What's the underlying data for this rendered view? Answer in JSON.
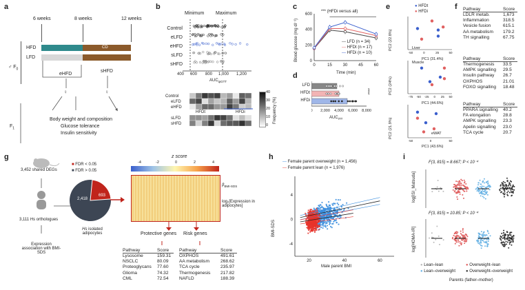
{
  "panel_labels": [
    "a",
    "b",
    "c",
    "d",
    "e",
    "f",
    "g",
    "h",
    "i"
  ],
  "panel_a": {
    "weeks": [
      "6 weeks",
      "8 weeks",
      "12 weeks"
    ],
    "rows": [
      "HFD",
      "LFD"
    ],
    "cd_label": "CD",
    "group_left": "eHFD",
    "group_right": "sHFD",
    "f0": "F",
    "f0_sub": "0",
    "f1": "F",
    "f1_sub": "1",
    "outcomes": [
      "Body weight and composition",
      "Glucose tolerance",
      "Insulin sensitivity"
    ]
  },
  "panel_b": {
    "minimum": "Minimum",
    "maximum": "Maximum",
    "groups": [
      "Control",
      "eLFD",
      "eHFD",
      "sLFD",
      "sHFD"
    ],
    "ticks": [
      "400",
      "600",
      "800",
      "1,000",
      "1,200"
    ],
    "xlabel": "AUC",
    "xlabel_sub": "ipGTT",
    "heat_rows": [
      "Control",
      "eLFD",
      "eHFD",
      "sLFD",
      "sHFD"
    ],
    "heat_cols": [
      "HFDt",
      "HFDi"
    ],
    "legend_ticks": [
      "40",
      "30",
      "20",
      "10",
      "0"
    ],
    "legend_title": "Frequency (%)"
  },
  "panel_c": {
    "chart_data": {
      "type": "line",
      "x": [
        0,
        15,
        30,
        60
      ],
      "series": [
        {
          "name": "LFD (n = 34)",
          "values": [
            155,
            390,
            370,
            290
          ],
          "color": "#444444"
        },
        {
          "name": "HFDt (n = 17)",
          "values": [
            158,
            410,
            410,
            320
          ],
          "color": "#e06060"
        },
        {
          "name": "HFDi (n = 10)",
          "values": [
            165,
            430,
            490,
            340
          ],
          "color": "#3a5fcd"
        }
      ],
      "xlabel": "Time (min)",
      "ylabel": "Blood glucose (mg dl⁻¹)",
      "x_ticks": [
        "0",
        "15",
        "30",
        "45",
        "60"
      ],
      "y_ticks": [
        "0",
        "200",
        "400",
        "600"
      ],
      "ylim": [
        0,
        600
      ],
      "annotation": "*** (HFDi versus all)"
    }
  },
  "panel_d": {
    "chart_data": {
      "type": "bar",
      "categories": [
        "LFD",
        "HFDt",
        "HFDi"
      ],
      "values": [
        3700,
        4000,
        5200
      ],
      "colors": [
        "#888888",
        "#f2b4b4",
        "#9fb6e8"
      ],
      "xlabel": "AUC",
      "xlabel_sub": "ITT",
      "x_ticks": [
        "0",
        "2,000",
        "4,000",
        "6,000",
        "8,000"
      ],
      "xlim": [
        0,
        8000
      ],
      "annotation": "****"
    }
  },
  "panel_e": {
    "legend": [
      "HFDt",
      "HFDi"
    ],
    "legend_colors": [
      "#3a5fcd",
      "#e06060"
    ],
    "plots": [
      {
        "tissue": "Liver",
        "xlabel": "PC1 (31.4%)",
        "ylabel": "PC2 (22.8%)",
        "xticks": [
          "-50",
          "0",
          "25",
          "50"
        ]
      },
      {
        "tissue": "Muscle",
        "xlabel": "PC1 (44.6%)",
        "ylabel": "PC2 (24%)",
        "xticks": [
          "-75",
          "-50",
          "-25",
          "0",
          "25",
          "50"
        ]
      },
      {
        "tissue": "eWAT",
        "xlabel": "PC1 (43.6%)",
        "ylabel": "PC2 (21.9%)",
        "xticks": [
          "-50",
          "0",
          "50"
        ]
      }
    ]
  },
  "panel_f": {
    "header": [
      "Pathway",
      "Score"
    ],
    "tables": [
      [
        [
          "LDLR metab.",
          "1,673"
        ],
        [
          "Inflammation",
          "318.5"
        ],
        [
          "Vesicle fusion",
          "615.1"
        ],
        [
          "AA metabolism",
          "179.2"
        ],
        [
          "TH signalling",
          "67.75"
        ]
      ],
      [
        [
          "Thermogenesis",
          "33.5"
        ],
        [
          "AMPK signalling",
          "29.5"
        ],
        [
          "Insulin pathway",
          "26.7"
        ],
        [
          "OXPHOS",
          "21.01"
        ],
        [
          "FOXO signalling",
          "18.48"
        ]
      ],
      [
        [
          "PPARA signalling",
          "40.2"
        ],
        [
          "FA elongation",
          "28.8"
        ],
        [
          "AMPK signalling",
          "23.3"
        ],
        [
          "Apelin signalling",
          "23.0"
        ],
        [
          "TCA cycle",
          "20.7"
        ]
      ]
    ]
  },
  "panel_g": {
    "shared_degs": "3,452 shared DEGs",
    "orthologues_pre": "3,111 ",
    "orthologues_em": "Hs",
    "orthologues_post": " orthologues",
    "expression": "Expression association with BMI-SDS",
    "fdr_legend": [
      "FDR < 0.05",
      "FDR > 0.05"
    ],
    "pie_values": [
      693,
      2418
    ],
    "pie_labels": [
      "693",
      "2,418"
    ],
    "pie_caption_em": "Hs",
    "pie_caption": " isolated adipocytes",
    "zscore": "z score",
    "z_ticks": [
      "-4",
      "-2",
      "0",
      "2",
      "4"
    ],
    "heat_label1": "β",
    "heat_label1_sub": "BMI-SDS",
    "heat_label2": "log₂[Expression in adipocytes]",
    "protective": "Protective genes",
    "risk": "Risk genes",
    "header": [
      "Pathway",
      "Score"
    ],
    "protective_rows": [
      [
        "Lysosome",
        "159.31"
      ],
      [
        "NSCLC",
        "80.09"
      ],
      [
        "Proteoglycans",
        "77.60"
      ],
      [
        "Glioma",
        "74.32"
      ],
      [
        "CML",
        "72.54"
      ]
    ],
    "risk_rows": [
      [
        "OXPHOS",
        "491.61"
      ],
      [
        "AA metabolism",
        "268.62"
      ],
      [
        "TCA cycle",
        "235.97"
      ],
      [
        "Thermogenesis",
        "217.82"
      ],
      [
        "NAFLD",
        "188.39"
      ]
    ]
  },
  "panel_h": {
    "chart_data": {
      "type": "scatter",
      "series": [
        {
          "name": "Female parent overweight (n = 1,456)",
          "color": "#3b8ede",
          "fit": [
            [
              15,
              0.3
            ],
            [
              60,
              3.0
            ]
          ]
        },
        {
          "name": "Female parent lean (n = 1,976)",
          "color": "#e8342c",
          "fit": [
            [
              15,
              -0.4
            ],
            [
              45,
              1.0
            ]
          ]
        }
      ],
      "xlabel": "Male parent BMI",
      "ylabel": "BMI-SDS",
      "x_ticks": [
        "20",
        "40",
        "60"
      ],
      "y_ticks": [
        "-4",
        "0",
        "4"
      ],
      "xlim": [
        12,
        68
      ],
      "ylim": [
        -6,
        7
      ]
    }
  },
  "panel_i": {
    "top_stat": "F(3, 815) = 8.667; P < 10⁻⁴",
    "bottom_stat": "F(3, 815) = 10.85; P < 10⁻⁴",
    "top_ylabel": "log[ISI_Matsuda]",
    "bottom_ylabel": "log[HOMA-IR]",
    "legend": [
      "Lean–lean",
      "Overweight–lean",
      "Lean–overweight",
      "Overweight–overweight"
    ],
    "legend_colors": [
      "#bbbbbb",
      "#e06060",
      "#6fb6e6",
      "#333333"
    ],
    "footer": "Parents (father–mother)"
  }
}
